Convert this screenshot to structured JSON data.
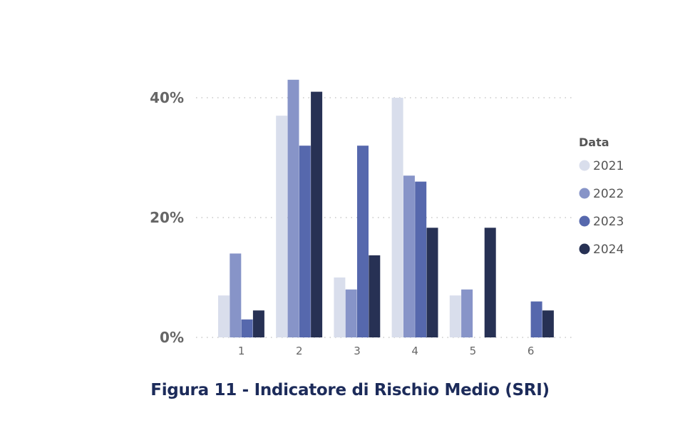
{
  "chart_data": {
    "type": "bar",
    "categories": [
      "1",
      "2",
      "3",
      "4",
      "5",
      "6"
    ],
    "y_ticks": [
      "0%",
      "20%",
      "40%"
    ],
    "y_tick_values": [
      0,
      20,
      40
    ],
    "ylim": [
      0,
      40
    ],
    "grid": true,
    "legend_title": "Data",
    "legend_position": "right",
    "series": [
      {
        "name": "2021",
        "color": "#d9deec",
        "values": [
          7,
          37,
          10,
          40,
          7,
          0
        ]
      },
      {
        "name": "2022",
        "color": "#8794c8",
        "values": [
          14,
          43,
          8,
          27,
          8,
          0
        ]
      },
      {
        "name": "2023",
        "color": "#5668ad",
        "values": [
          3,
          32,
          32,
          26,
          0,
          6
        ]
      },
      {
        "name": "2024",
        "color": "#273154",
        "values": [
          4.5,
          41,
          13.7,
          18.3,
          18.3,
          4.5
        ]
      }
    ]
  },
  "caption": "Figura 11 - Indicatore di Rischio Medio (SRI)"
}
